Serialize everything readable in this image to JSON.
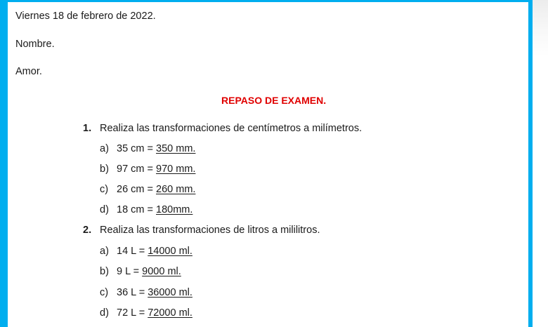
{
  "header": {
    "date": "Viernes 18 de febrero de 2022.",
    "name_label": "Nombre.",
    "name": "Amor."
  },
  "title": "REPASO DE EXAMEN.",
  "accent_color": "#00aeef",
  "title_color": "#e00000",
  "questions": [
    {
      "number": "1.",
      "prompt": "Realiza las transformaciones de centímetros a milímetros.",
      "items": [
        {
          "letter": "a)",
          "expr": "35 cm = ",
          "answer": "350 mm."
        },
        {
          "letter": "b)",
          "expr": "97 cm = ",
          "answer": "970 mm."
        },
        {
          "letter": "c)",
          "expr": "26 cm = ",
          "answer": "260 mm."
        },
        {
          "letter": "d)",
          "expr": "18 cm = ",
          "answer": "180mm."
        }
      ]
    },
    {
      "number": "2.",
      "prompt": "Realiza las transformaciones de litros a mililitros.",
      "items": [
        {
          "letter": "a)",
          "expr": "14 L = ",
          "answer": "14000 ml."
        },
        {
          "letter": "b)",
          "expr": "9 L = ",
          "answer": "9000 ml."
        },
        {
          "letter": "c)",
          "expr": "36 L = ",
          "answer": "36000 ml."
        },
        {
          "letter": "d)",
          "expr": "72 L = ",
          "answer": "72000 ml."
        }
      ]
    }
  ]
}
